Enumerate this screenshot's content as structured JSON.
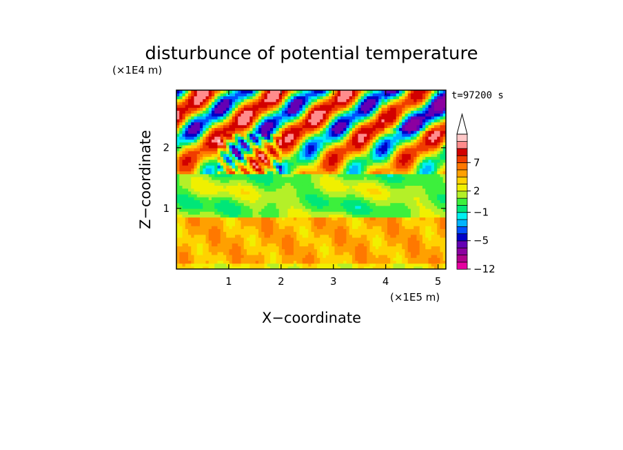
{
  "chart_data": {
    "type": "heatmap",
    "title": "disturbunce of potential temperature",
    "xlabel": "X−coordinate",
    "ylabel": "Z−coordinate",
    "x_unit": "(×1E5 m)",
    "y_unit": "(×1E4 m)",
    "time_label": "t=97200 s",
    "xlim": [
      0,
      5.15
    ],
    "ylim": [
      0,
      2.95
    ],
    "x_ticks": [
      1,
      2,
      3,
      4,
      5
    ],
    "y_ticks": [
      1,
      2
    ],
    "x_tick_labels": [
      "1",
      "2",
      "3",
      "4",
      "5"
    ],
    "y_tick_labels": [
      "1",
      "2"
    ],
    "colorbar": {
      "levels": [
        -12,
        -10,
        -8,
        -6,
        -5,
        -4,
        -3,
        -2,
        -1,
        0,
        1,
        2,
        3,
        4,
        5,
        7,
        9,
        11
      ],
      "labeled_levels": [
        -12,
        -5,
        -1,
        2,
        7
      ],
      "labels": [
        "−12",
        "−5",
        "−1",
        "2",
        "7"
      ],
      "colors": [
        "#e600a0",
        "#b0008c",
        "#8c00a0",
        "#6400b4",
        "#0000c8",
        "#0050ff",
        "#00b4ff",
        "#00f0f0",
        "#00e678",
        "#3cf03c",
        "#b4f028",
        "#f0f000",
        "#ffd200",
        "#ffa000",
        "#ff7800",
        "#f03c00",
        "#d20000",
        "#ff8c8c",
        "#ffc8c8"
      ],
      "extend": "max"
    }
  }
}
